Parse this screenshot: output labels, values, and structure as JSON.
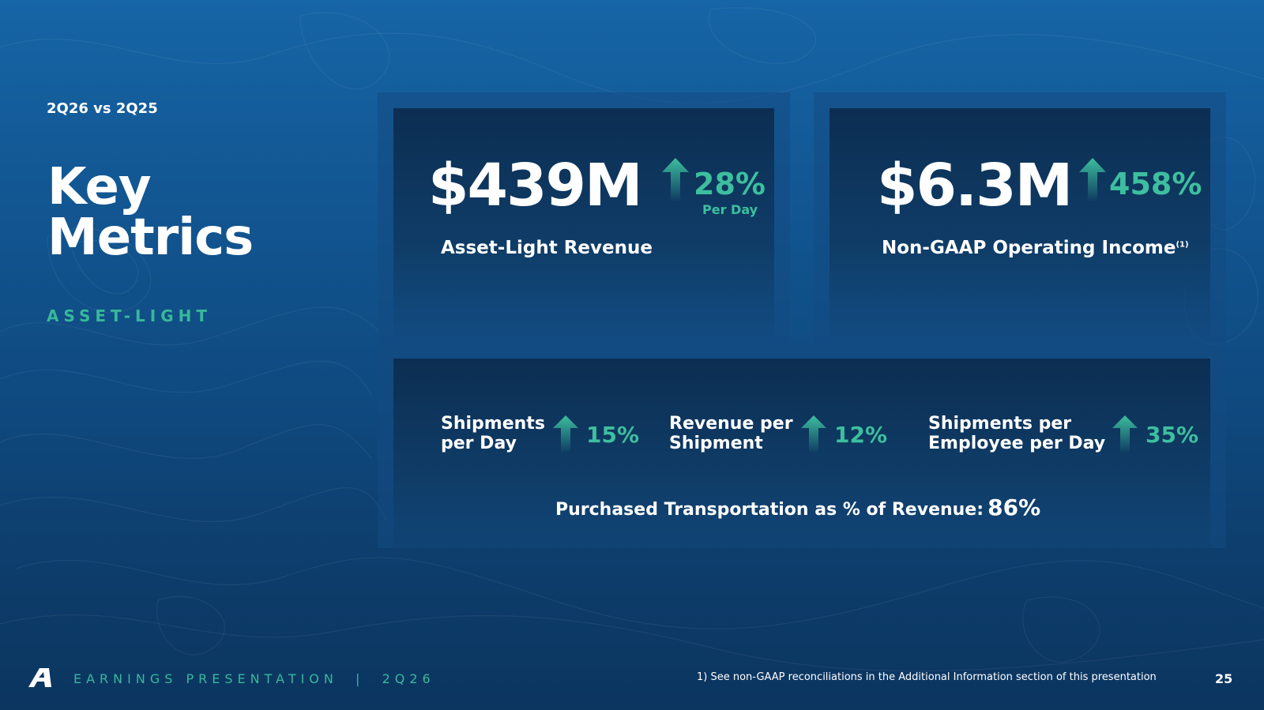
{
  "header": {
    "comparison": "2Q26 vs 2Q25",
    "title_line1": "Key",
    "title_line2": "Metrics",
    "section": "ASSET-LIGHT"
  },
  "revenue_card": {
    "value": "$439M",
    "change": "28%",
    "change_note": "Per Day",
    "label": "Asset-Light Revenue"
  },
  "income_card": {
    "value": "$6.3M",
    "change": "458%",
    "label": "Non-GAAP Operating Income",
    "footnote_ref": "(1)"
  },
  "metrics": [
    {
      "label_line1": "Shipments",
      "label_line2": "per Day",
      "change": "15%"
    },
    {
      "label_line1": "Revenue per",
      "label_line2": "Shipment",
      "change": "12%"
    },
    {
      "label_line1": "Shipments per",
      "label_line2": "Employee per Day",
      "change": "35%"
    }
  ],
  "purchased": {
    "label": "Purchased Transportation as % of Revenue:",
    "value": "86%"
  },
  "footer": {
    "brand": "EARNINGS PRESENTATION  |  2Q26",
    "footnote": "1)  See non-GAAP reconciliations in the Additional Information section of this presentation",
    "page": "25"
  },
  "colors": {
    "accent": "#3dbf9f",
    "background": "#125692",
    "card": "#0c2e52"
  },
  "icons": [
    "up-arrow-icon",
    "logo-a-icon"
  ]
}
